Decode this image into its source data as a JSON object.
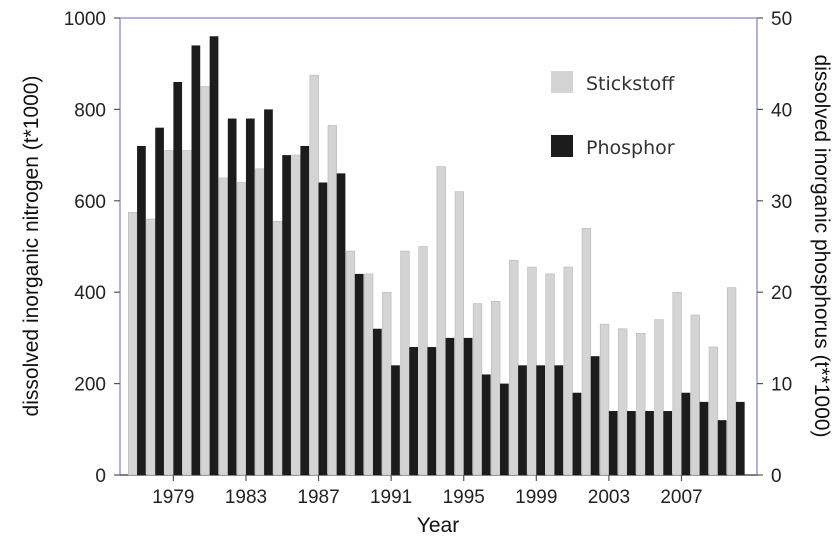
{
  "chart_data": {
    "type": "bar",
    "xlabel": "Year",
    "ylabel_left": "dissolved inorganic nitrogen (t*1000)",
    "ylabel_right": "dissolved inorganic phosphorus (t**1000)",
    "ylim_left": [
      0,
      1000
    ],
    "ylim_right": [
      0,
      50
    ],
    "yticks_left": [
      "0",
      "200",
      "400",
      "600",
      "800",
      "1000"
    ],
    "yticks_right": [
      "0",
      "10",
      "20",
      "30",
      "40",
      "50"
    ],
    "x_tick_labels": [
      "1979",
      "1983",
      "1987",
      "1991",
      "1995",
      "1999",
      "2003",
      "2007"
    ],
    "legend_placement": "top-right",
    "years": [
      1977,
      1978,
      1979,
      1980,
      1981,
      1982,
      1983,
      1984,
      1985,
      1986,
      1987,
      1988,
      1989,
      1990,
      1991,
      1992,
      1993,
      1994,
      1995,
      1996,
      1997,
      1998,
      1999,
      2000,
      2001,
      2002,
      2003,
      2004,
      2005,
      2006,
      2007,
      2008,
      2009,
      2010
    ],
    "series": [
      {
        "name": "Stickstoff",
        "axis": "left",
        "color": "#d4d4d4",
        "values": [
          575,
          560,
          710,
          710,
          850,
          650,
          640,
          670,
          555,
          700,
          875,
          765,
          490,
          440,
          400,
          490,
          500,
          675,
          620,
          375,
          380,
          470,
          455,
          440,
          455,
          540,
          330,
          320,
          310,
          340,
          400,
          350,
          280,
          410
        ]
      },
      {
        "name": "Phosphor",
        "axis": "right",
        "color": "#1c1c1c",
        "values": [
          36,
          38,
          43,
          47,
          48,
          39,
          39,
          40,
          35,
          36,
          32,
          33,
          22,
          16,
          12,
          14,
          14,
          15,
          15,
          11,
          10,
          12,
          12,
          12,
          9,
          13,
          7,
          7,
          7,
          7,
          9,
          8,
          6,
          8
        ]
      }
    ]
  }
}
